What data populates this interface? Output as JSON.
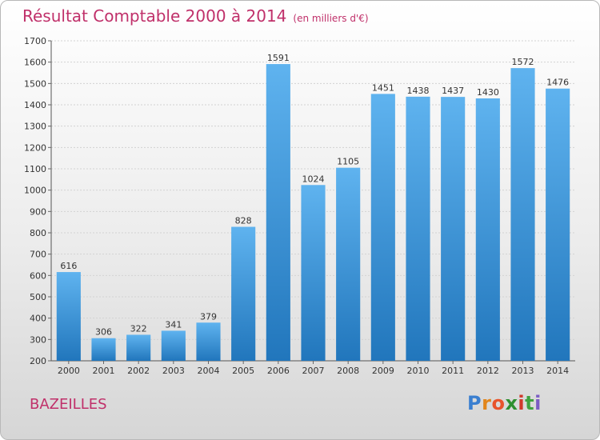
{
  "title": "Résultat Comptable 2000 à 2014",
  "unit_note": "(en milliers d'€)",
  "commune": "BAZEILLES",
  "logo": {
    "text": "Proxiti",
    "letter_colors": [
      "#3a7fd0",
      "#e2861c",
      "#e8542c",
      "#2f8f2f",
      "#d0392b",
      "#3fa23f",
      "#7b5cc4"
    ]
  },
  "colors": {
    "title": "#c0306a",
    "bar_top": "#5fb3ef",
    "bar_bottom": "#2176bc"
  },
  "chart_data": {
    "type": "bar",
    "title": "Résultat Comptable 2000 à 2014",
    "categories": [
      "2000",
      "2001",
      "2002",
      "2003",
      "2004",
      "2005",
      "2006",
      "2007",
      "2008",
      "2009",
      "2010",
      "2011",
      "2012",
      "2013",
      "2014"
    ],
    "values": [
      616,
      306,
      322,
      341,
      379,
      828,
      1591,
      1024,
      1105,
      1451,
      1438,
      1437,
      1430,
      1572,
      1476
    ],
    "ylim": [
      200,
      1700
    ],
    "yticks": [
      200,
      300,
      400,
      500,
      600,
      700,
      800,
      900,
      1000,
      1100,
      1200,
      1300,
      1400,
      1500,
      1600,
      1700
    ],
    "grid": true
  }
}
